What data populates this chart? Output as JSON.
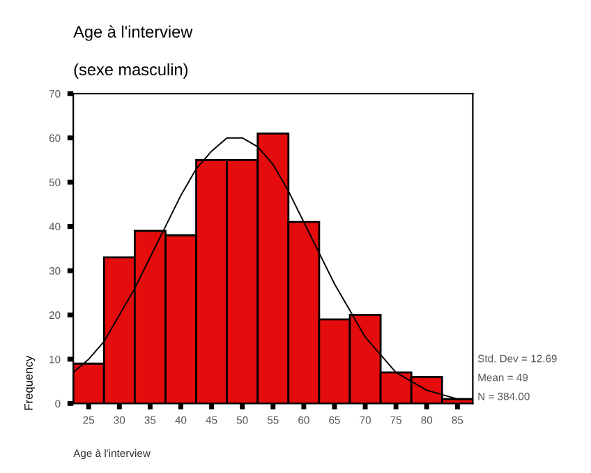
{
  "chart_data": {
    "type": "histogram",
    "title": "Age à l'interview",
    "subtitle": "(sexe masculin)",
    "xlabel": "Age à l'interview",
    "ylabel": "Frequency",
    "series": [
      {
        "bins": [
          22.5,
          27.5,
          32.5,
          37.5,
          42.5,
          47.5,
          52.5,
          57.5,
          62.5,
          67.5,
          72.5,
          77.5,
          82.5,
          87.5
        ],
        "values": [
          9,
          33,
          39,
          38,
          55,
          55,
          61,
          41,
          19,
          20,
          7,
          6,
          1
        ],
        "color": "#e40c0c"
      },
      {
        "type": "line",
        "x": [
          22.5,
          25,
          27.5,
          30,
          32.5,
          35,
          37.5,
          40,
          42.5,
          45,
          47.5,
          50,
          52.5,
          55,
          57.5,
          60,
          62.5,
          65,
          67.5,
          70,
          72.5,
          75,
          77.5,
          80,
          82.5,
          85,
          87.5
        ],
        "values": [
          7,
          10,
          14,
          20,
          26,
          33,
          40,
          47,
          53,
          57,
          60,
          60,
          58,
          54,
          48,
          41,
          34,
          27,
          21,
          15,
          11,
          7,
          5,
          3,
          2,
          1,
          1
        ],
        "color": "#000000"
      }
    ],
    "xlim": [
      22.5,
      87.5
    ],
    "xticks": [
      25,
      30,
      35,
      40,
      45,
      50,
      55,
      60,
      65,
      70,
      75,
      80,
      85
    ],
    "ylim": [
      0,
      70
    ],
    "yticks": [
      0,
      10,
      20,
      30,
      40,
      50,
      60,
      70
    ],
    "annotations": [
      "Std. Dev = 12.69",
      "Mean = 49",
      "N = 384.00"
    ],
    "grid": false,
    "legend": false
  }
}
